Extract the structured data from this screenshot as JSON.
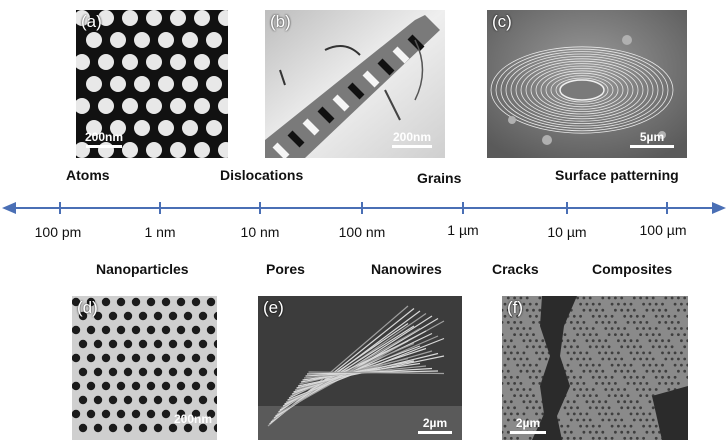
{
  "panels": [
    {
      "label": "(a)",
      "scale": "200nm"
    },
    {
      "label": "(b)",
      "scale": "200nm"
    },
    {
      "label": "(c)",
      "scale": "5µm"
    },
    {
      "label": "(d)",
      "scale": "200nm"
    },
    {
      "label": "(e)",
      "scale": "2µm"
    },
    {
      "label": "(f)",
      "scale": "2µm"
    }
  ],
  "top_categories": [
    "Atoms",
    "Dislocations",
    "Grains",
    "Surface patterning"
  ],
  "bottom_categories": [
    "Nanoparticles",
    "Pores",
    "Nanowires",
    "Cracks",
    "Composites"
  ],
  "axis_ticks": [
    "100 pm",
    "1 nm",
    "10 nm",
    "100 nm",
    "1 µm",
    "10 µm",
    "100 µm"
  ],
  "colors": {
    "axis": "#4a6fb5",
    "micrograph_dark": "#1a1a1a",
    "micrograph_light": "#e6e6e6"
  }
}
